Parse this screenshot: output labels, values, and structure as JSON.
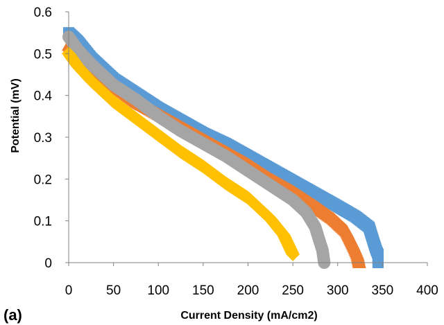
{
  "panel_label": "(a)",
  "chart_data": {
    "type": "scatter",
    "title": "",
    "xlabel": "Current Density (mA/cm2)",
    "ylabel": "Potential (mV)",
    "xlim": [
      0,
      400
    ],
    "ylim": [
      0,
      0.6
    ],
    "xticks": [
      0,
      50,
      100,
      150,
      200,
      250,
      300,
      350,
      400
    ],
    "yticks": [
      0,
      0.1,
      0.2,
      0.3,
      0.4,
      0.5,
      0.6
    ],
    "xtick_labels": [
      "0",
      "50",
      "100",
      "150",
      "200",
      "250",
      "300",
      "350",
      "400"
    ],
    "ytick_labels": [
      "0",
      "0.1",
      "0.2",
      "0.3",
      "0.4",
      "0.5",
      "0.6"
    ],
    "grid": false,
    "legend": "none",
    "series": [
      {
        "marker": "square",
        "color": "#5B9BD5",
        "points": [
          [
            0,
            0.55
          ],
          [
            10,
            0.53
          ],
          [
            25,
            0.49
          ],
          [
            50,
            0.44
          ],
          [
            75,
            0.405
          ],
          [
            100,
            0.37
          ],
          [
            125,
            0.34
          ],
          [
            150,
            0.31
          ],
          [
            175,
            0.285
          ],
          [
            200,
            0.255
          ],
          [
            225,
            0.225
          ],
          [
            250,
            0.195
          ],
          [
            275,
            0.165
          ],
          [
            300,
            0.135
          ],
          [
            320,
            0.11
          ],
          [
            335,
            0.085
          ],
          [
            340,
            0.05
          ],
          [
            343,
            0.03
          ],
          [
            345,
            0.02
          ],
          [
            345,
            0.0
          ]
        ]
      },
      {
        "marker": "triangle",
        "color": "#ED7D31",
        "points": [
          [
            0,
            0.52
          ],
          [
            10,
            0.5
          ],
          [
            25,
            0.47
          ],
          [
            50,
            0.425
          ],
          [
            75,
            0.385
          ],
          [
            100,
            0.355
          ],
          [
            125,
            0.325
          ],
          [
            150,
            0.295
          ],
          [
            175,
            0.265
          ],
          [
            200,
            0.235
          ],
          [
            225,
            0.2
          ],
          [
            250,
            0.17
          ],
          [
            275,
            0.135
          ],
          [
            295,
            0.105
          ],
          [
            310,
            0.075
          ],
          [
            318,
            0.04
          ],
          [
            322,
            0.02
          ],
          [
            324,
            0.0
          ]
        ]
      },
      {
        "marker": "circle",
        "color": "#A5A5A5",
        "points": [
          [
            0,
            0.54
          ],
          [
            10,
            0.51
          ],
          [
            25,
            0.475
          ],
          [
            50,
            0.425
          ],
          [
            75,
            0.39
          ],
          [
            100,
            0.35
          ],
          [
            125,
            0.315
          ],
          [
            150,
            0.285
          ],
          [
            175,
            0.255
          ],
          [
            200,
            0.22
          ],
          [
            225,
            0.185
          ],
          [
            250,
            0.15
          ],
          [
            265,
            0.12
          ],
          [
            275,
            0.085
          ],
          [
            280,
            0.05
          ],
          [
            283,
            0.03
          ],
          [
            285,
            0.0
          ]
        ]
      },
      {
        "marker": "diamond",
        "color": "#FFC000",
        "points": [
          [
            0,
            0.5
          ],
          [
            10,
            0.47
          ],
          [
            25,
            0.435
          ],
          [
            50,
            0.385
          ],
          [
            75,
            0.345
          ],
          [
            100,
            0.305
          ],
          [
            125,
            0.265
          ],
          [
            150,
            0.23
          ],
          [
            175,
            0.19
          ],
          [
            200,
            0.155
          ],
          [
            225,
            0.105
          ],
          [
            240,
            0.065
          ],
          [
            250,
            0.02
          ]
        ]
      }
    ]
  }
}
